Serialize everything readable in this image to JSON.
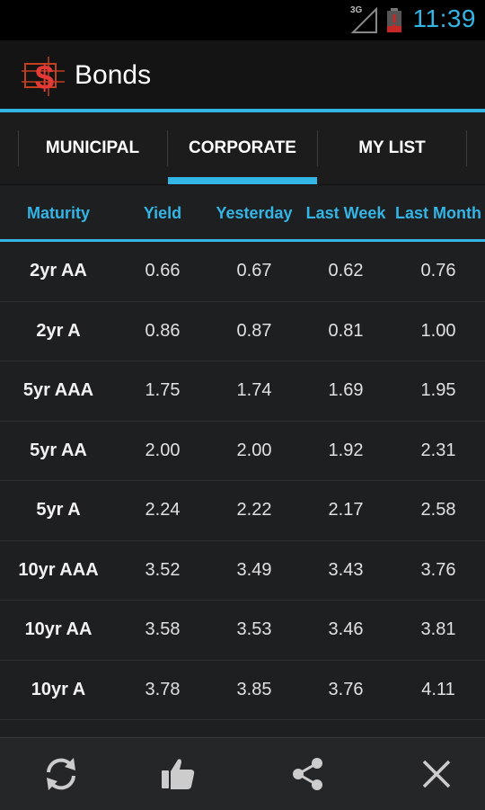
{
  "status": {
    "network": "3G",
    "time": "11:39"
  },
  "app": {
    "title": "Bonds"
  },
  "tabs": [
    {
      "label": "MUNICIPAL",
      "active": false
    },
    {
      "label": "CORPORATE",
      "active": true
    },
    {
      "label": "MY LIST",
      "active": false
    }
  ],
  "table": {
    "headers": [
      "Maturity",
      "Yield",
      "Yesterday",
      "Last Week",
      "Last Month"
    ],
    "rows": [
      [
        "2yr AA",
        "0.66",
        "0.67",
        "0.62",
        "0.76"
      ],
      [
        "2yr A",
        "0.86",
        "0.87",
        "0.81",
        "1.00"
      ],
      [
        "5yr AAA",
        "1.75",
        "1.74",
        "1.69",
        "1.95"
      ],
      [
        "5yr AA",
        "2.00",
        "2.00",
        "1.92",
        "2.31"
      ],
      [
        "5yr A",
        "2.24",
        "2.22",
        "2.17",
        "2.58"
      ],
      [
        "10yr AAA",
        "3.52",
        "3.49",
        "3.43",
        "3.76"
      ],
      [
        "10yr AA",
        "3.58",
        "3.53",
        "3.46",
        "3.81"
      ],
      [
        "10yr A",
        "3.78",
        "3.85",
        "3.76",
        "4.11"
      ]
    ]
  },
  "bottom_actions": [
    {
      "icon": "refresh-icon"
    },
    {
      "icon": "thumbs-up-icon"
    },
    {
      "icon": "share-icon"
    },
    {
      "icon": "close-icon"
    }
  ],
  "colors": {
    "accent": "#33b5e5",
    "background": "#1e1f21"
  }
}
